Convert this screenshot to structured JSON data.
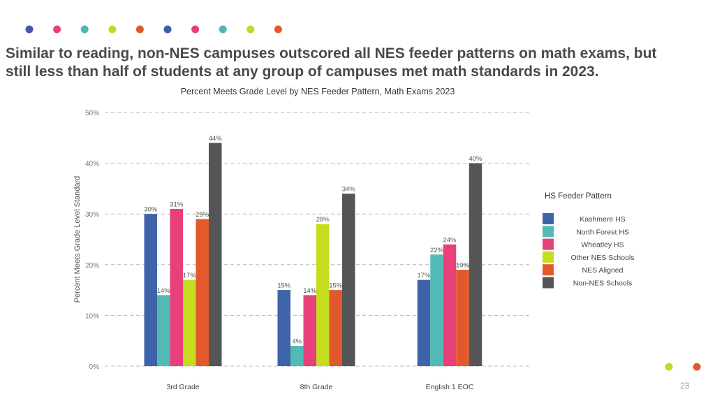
{
  "headline": {
    "line1": "Similar to reading, non-NES campuses outscored all NES feeder patterns on math exams, but",
    "line2": "still less than half of students at any group of campuses met math standards in 2023."
  },
  "decor": {
    "top_dot_colors": [
      "#3a5fa8",
      "#e8407a",
      "#4fb8b4",
      "#c4d62a",
      "#e25a2c",
      "#3a5fa8",
      "#e8407a",
      "#4fb8b4",
      "#c4d62a",
      "#e25a2c"
    ],
    "bottom_dot_colors": [
      "#c4d62a",
      "#e25a2c"
    ]
  },
  "page_number": "23",
  "chart_data": {
    "type": "bar",
    "title": "Percent Meets Grade Level by NES Feeder Pattern, Math Exams 2023",
    "xlabel": "",
    "ylabel": "Percent Meets Grade Level Standard",
    "ylim": [
      0,
      50
    ],
    "yticks": [
      0,
      10,
      20,
      30,
      40,
      50
    ],
    "ytick_labels": [
      "0%",
      "10%",
      "20%",
      "30%",
      "40%",
      "50%"
    ],
    "grid": true,
    "categories": [
      "3rd Grade",
      "8th Grade",
      "English 1 EOC"
    ],
    "legend_title": "HS Feeder Pattern",
    "legend_position": "right",
    "series": [
      {
        "name": "Kashmere HS",
        "color": "#3e63a8",
        "values": [
          30,
          15,
          17
        ],
        "labels": [
          "30%",
          "15%",
          "17%"
        ]
      },
      {
        "name": "North Forest HS",
        "color": "#52bab5",
        "values": [
          14,
          4,
          22
        ],
        "labels": [
          "14%",
          "4%",
          "22%"
        ]
      },
      {
        "name": "Wheatley HS",
        "color": "#e8407a",
        "values": [
          31,
          14,
          24
        ],
        "labels": [
          "31%",
          "14%",
          "24%"
        ]
      },
      {
        "name": "Other NES Schools",
        "color": "#c6dc1e",
        "values": [
          17,
          28,
          null
        ],
        "labels": [
          "17%",
          "28%",
          ""
        ]
      },
      {
        "name": "NES Aligned",
        "color": "#e25a2c",
        "values": [
          29,
          15,
          19
        ],
        "labels": [
          "29%",
          "15%",
          "19%"
        ]
      },
      {
        "name": "Non-NES Schools",
        "color": "#555558",
        "values": [
          44,
          34,
          40
        ],
        "labels": [
          "44%",
          "34%",
          "40%"
        ]
      }
    ]
  }
}
